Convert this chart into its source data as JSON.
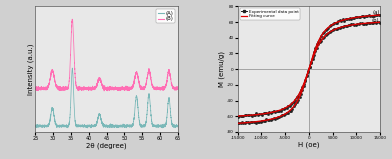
{
  "left_panel": {
    "xmin": 25,
    "xmax": 65,
    "xlabel": "2θ (degree)",
    "ylabel": "Intensity (a.u.)",
    "curve_A_color": "#7ab8b8",
    "curve_B_color": "#ff6eb4",
    "legend_labels": [
      "(A)",
      "(B)"
    ],
    "peaks_A": [
      29.8,
      35.4,
      43.0,
      53.4,
      56.9,
      62.5
    ],
    "peaks_B": [
      29.8,
      35.4,
      43.0,
      53.4,
      56.9,
      62.5
    ],
    "peak_heights_A": [
      0.18,
      0.58,
      0.12,
      0.3,
      0.32,
      0.28
    ],
    "peak_heights_B": [
      0.18,
      0.7,
      0.1,
      0.16,
      0.18,
      0.18
    ],
    "peak_widths_A": [
      0.45,
      0.35,
      0.45,
      0.42,
      0.4,
      0.38
    ],
    "peak_widths_B": [
      0.55,
      0.42,
      0.5,
      0.5,
      0.48,
      0.45
    ],
    "noise_level_A": 0.006,
    "noise_level_B": 0.008,
    "base_A": 0.04,
    "base_B": 0.42,
    "bg_color": "#e8e8e8"
  },
  "right_panel": {
    "xmin": -15000,
    "xmax": 15000,
    "ymin": -80,
    "ymax": 80,
    "xlabel": "H (oe)",
    "ylabel": "M (emu/g)",
    "xticks": [
      -15000,
      -10000,
      -5000,
      0,
      5000,
      10000,
      15000
    ],
    "yticks": [
      -80,
      -60,
      -40,
      -20,
      0,
      20,
      40,
      60,
      80
    ],
    "Ms_a": 75,
    "Ms_b": 65,
    "k_a": 1200,
    "k_b": 1200,
    "curve_exp_color": "#222222",
    "curve_fit_color": "#dd0000",
    "legend_labels": [
      "Experimental data point",
      "Fitting curve"
    ],
    "label_a": "(a)",
    "label_b": "(b)",
    "bg_color": "#e8e8e8"
  }
}
